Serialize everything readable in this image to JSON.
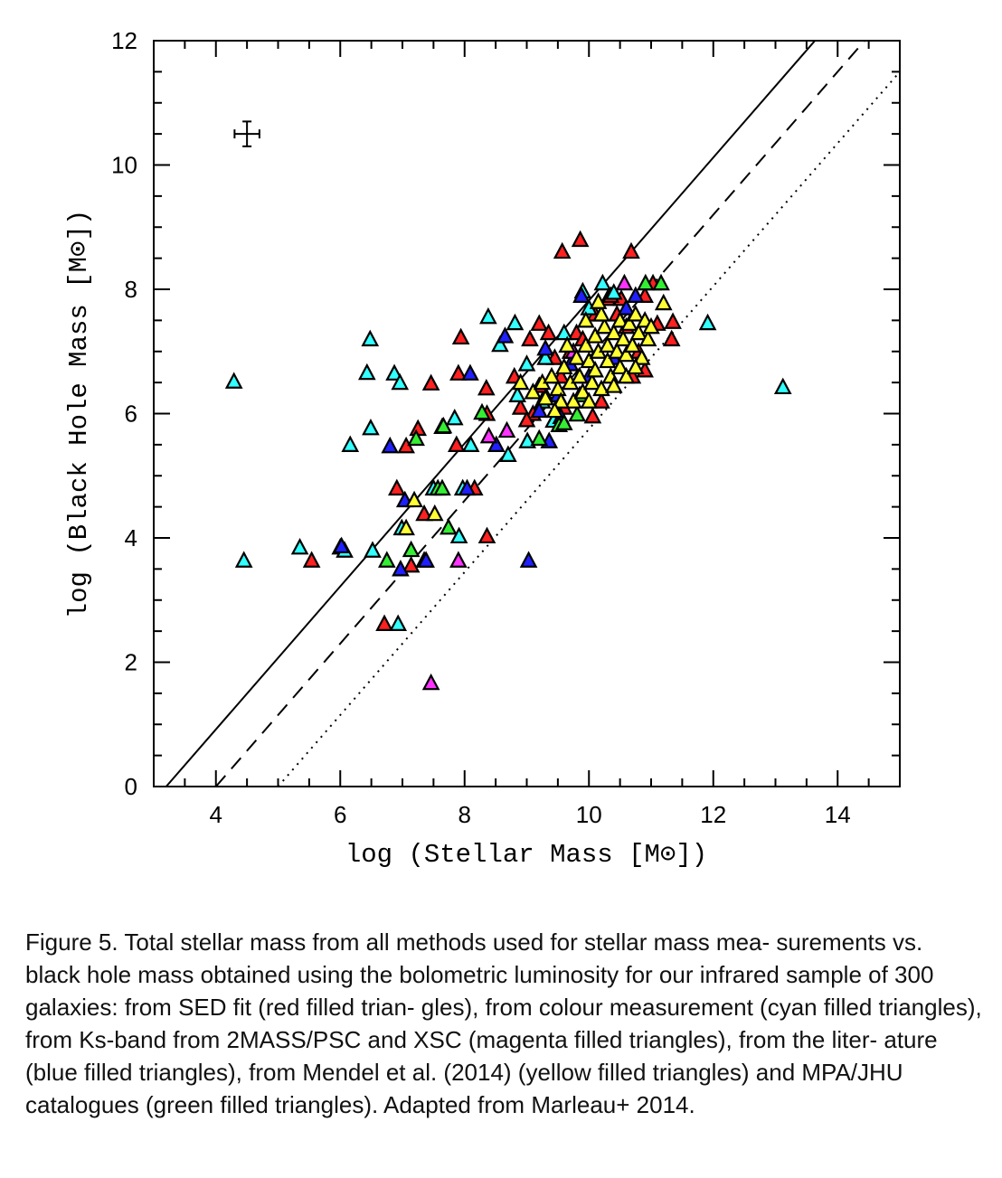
{
  "chart_data": {
    "type": "scatter",
    "xlabel": "log (Stellar Mass [M⊙])",
    "ylabel": "log (Black Hole Mass [M⊙])",
    "xlim": [
      3,
      15
    ],
    "ylim": [
      0,
      12
    ],
    "xticks": [
      4,
      6,
      8,
      10,
      12,
      14
    ],
    "yticks": [
      0,
      2,
      4,
      6,
      8,
      10,
      12
    ],
    "grid": false,
    "marker": "filled-triangle-black-outline",
    "reference_lines": [
      {
        "style": "solid",
        "slope": 1.15,
        "x_at_y0": 3.2
      },
      {
        "style": "dashed",
        "slope": 1.15,
        "x_at_y0": 4.0
      },
      {
        "style": "dotted",
        "slope": 1.15,
        "x_at_y0": 5.0
      }
    ],
    "error_bar": {
      "x": 4.5,
      "y": 10.5,
      "xerr": 0.2,
      "yerr": 0.2
    },
    "series": [
      {
        "color": "#ff2020",
        "points": [
          [
            5.54,
            3.64
          ],
          [
            6.0,
            3.85
          ],
          [
            7.06,
            5.48
          ],
          [
            7.46,
            6.49
          ],
          [
            7.25,
            5.76
          ],
          [
            7.94,
            7.23
          ],
          [
            7.9,
            6.65
          ],
          [
            8.35,
            6.41
          ],
          [
            8.36,
            6.0
          ],
          [
            7.87,
            5.5
          ],
          [
            6.91,
            4.8
          ],
          [
            7.35,
            4.39
          ],
          [
            8.16,
            4.8
          ],
          [
            8.36,
            4.03
          ],
          [
            7.14,
            3.56
          ],
          [
            6.71,
            2.62
          ],
          [
            9.57,
            8.61
          ],
          [
            9.86,
            8.8
          ],
          [
            10.68,
            8.61
          ],
          [
            11.35,
            7.48
          ],
          [
            11.33,
            7.2
          ],
          [
            10.52,
            7.85
          ],
          [
            11.03,
            8.1
          ],
          [
            10.06,
            5.96
          ],
          [
            9.2,
            7.45
          ],
          [
            9.35,
            7.3
          ],
          [
            9.05,
            7.2
          ],
          [
            8.9,
            6.1
          ],
          [
            9.1,
            6.0
          ],
          [
            9.3,
            6.3
          ],
          [
            9.55,
            6.6
          ],
          [
            9.7,
            7.0
          ],
          [
            9.8,
            7.3
          ],
          [
            10.1,
            7.6
          ],
          [
            10.3,
            7.85
          ],
          [
            10.45,
            7.6
          ],
          [
            10.6,
            7.4
          ],
          [
            10.8,
            7.0
          ],
          [
            10.9,
            6.7
          ],
          [
            10.7,
            6.6
          ],
          [
            9.6,
            6.1
          ],
          [
            9.45,
            6.9
          ],
          [
            9.9,
            7.2
          ],
          [
            10.35,
            7.9
          ],
          [
            10.9,
            7.9
          ],
          [
            9.2,
            6.45
          ],
          [
            8.8,
            6.6
          ],
          [
            9.0,
            5.9
          ],
          [
            10.2,
            6.2
          ],
          [
            11.1,
            7.45
          ]
        ]
      },
      {
        "color": "#33ffff",
        "points": [
          [
            4.29,
            6.52
          ],
          [
            4.45,
            3.64
          ],
          [
            5.35,
            3.85
          ],
          [
            6.07,
            3.8
          ],
          [
            6.16,
            5.5
          ],
          [
            6.48,
            7.2
          ],
          [
            6.43,
            6.66
          ],
          [
            6.49,
            5.77
          ],
          [
            6.52,
            3.8
          ],
          [
            6.87,
            6.65
          ],
          [
            6.96,
            6.5
          ],
          [
            7.64,
            5.79
          ],
          [
            7.84,
            5.93
          ],
          [
            8.38,
            7.56
          ],
          [
            8.57,
            7.11
          ],
          [
            8.81,
            7.46
          ],
          [
            8.1,
            5.5
          ],
          [
            8.7,
            5.34
          ],
          [
            6.99,
            4.16
          ],
          [
            7.5,
            4.8
          ],
          [
            7.97,
            4.8
          ],
          [
            7.91,
            4.03
          ],
          [
            7.35,
            3.64
          ],
          [
            6.93,
            2.62
          ],
          [
            11.91,
            7.46
          ],
          [
            13.12,
            6.43
          ],
          [
            10.22,
            8.1
          ],
          [
            9.9,
            7.97
          ],
          [
            9.01,
            5.56
          ],
          [
            9.43,
            5.89
          ],
          [
            9.0,
            6.8
          ],
          [
            9.3,
            6.9
          ],
          [
            9.6,
            7.3
          ],
          [
            10.0,
            7.7
          ],
          [
            10.4,
            7.95
          ],
          [
            9.25,
            6.2
          ],
          [
            8.85,
            6.3
          ]
        ]
      },
      {
        "color": "#2020ff",
        "points": [
          [
            6.02,
            3.87
          ],
          [
            6.8,
            5.48
          ],
          [
            8.09,
            6.65
          ],
          [
            8.65,
            7.25
          ],
          [
            8.51,
            5.5
          ],
          [
            7.04,
            4.61
          ],
          [
            8.04,
            4.8
          ],
          [
            6.97,
            3.5
          ],
          [
            7.38,
            3.64
          ],
          [
            9.03,
            3.64
          ],
          [
            9.88,
            7.9
          ],
          [
            9.36,
            5.56
          ],
          [
            9.5,
            6.3
          ],
          [
            9.7,
            6.8
          ],
          [
            9.3,
            7.05
          ],
          [
            10.0,
            6.6
          ],
          [
            10.6,
            7.7
          ],
          [
            9.55,
            5.95
          ],
          [
            9.2,
            6.05
          ],
          [
            10.4,
            6.9
          ],
          [
            10.75,
            7.9
          ]
        ]
      },
      {
        "color": "#ff33ff",
        "points": [
          [
            8.39,
            5.64
          ],
          [
            7.9,
            3.64
          ],
          [
            7.46,
            1.67
          ],
          [
            10.57,
            8.1
          ],
          [
            8.68,
            5.73
          ],
          [
            9.75,
            7.0
          ]
        ]
      },
      {
        "color": "#33ee33",
        "points": [
          [
            7.22,
            5.6
          ],
          [
            7.66,
            5.8
          ],
          [
            8.28,
            6.02
          ],
          [
            7.57,
            4.8
          ],
          [
            7.64,
            4.8
          ],
          [
            7.74,
            4.17
          ],
          [
            7.14,
            3.81
          ],
          [
            6.75,
            3.64
          ],
          [
            9.81,
            5.99
          ],
          [
            9.2,
            5.6
          ],
          [
            9.52,
            5.82
          ],
          [
            10.91,
            8.1
          ],
          [
            11.16,
            8.1
          ],
          [
            9.6,
            5.85
          ],
          [
            9.85,
            6.3
          ]
        ]
      },
      {
        "color": "#ffff33",
        "points": [
          [
            7.19,
            4.61
          ],
          [
            7.52,
            4.39
          ],
          [
            7.06,
            4.16
          ],
          [
            8.9,
            6.5
          ],
          [
            9.1,
            6.35
          ],
          [
            9.25,
            6.5
          ],
          [
            9.4,
            6.6
          ],
          [
            9.5,
            6.4
          ],
          [
            9.6,
            6.75
          ],
          [
            9.7,
            6.5
          ],
          [
            9.75,
            6.2
          ],
          [
            9.8,
            6.9
          ],
          [
            9.85,
            6.6
          ],
          [
            9.9,
            6.35
          ],
          [
            9.95,
            7.1
          ],
          [
            10.0,
            6.85
          ],
          [
            10.05,
            6.5
          ],
          [
            10.1,
            7.25
          ],
          [
            10.1,
            6.7
          ],
          [
            10.15,
            7.0
          ],
          [
            10.2,
            6.4
          ],
          [
            10.25,
            7.4
          ],
          [
            10.3,
            6.85
          ],
          [
            10.3,
            7.1
          ],
          [
            10.35,
            6.6
          ],
          [
            10.4,
            7.3
          ],
          [
            10.45,
            7.0
          ],
          [
            10.5,
            7.5
          ],
          [
            10.5,
            6.75
          ],
          [
            10.55,
            7.2
          ],
          [
            10.6,
            6.95
          ],
          [
            10.65,
            7.45
          ],
          [
            10.7,
            7.1
          ],
          [
            10.75,
            7.6
          ],
          [
            10.8,
            7.3
          ],
          [
            10.85,
            6.9
          ],
          [
            10.9,
            7.5
          ],
          [
            10.95,
            7.2
          ],
          [
            11.0,
            7.4
          ],
          [
            10.2,
            7.6
          ],
          [
            9.95,
            7.5
          ],
          [
            9.65,
            7.1
          ],
          [
            10.4,
            6.45
          ],
          [
            9.55,
            6.2
          ],
          [
            10.0,
            6.2
          ],
          [
            9.45,
            6.05
          ],
          [
            10.6,
            6.6
          ],
          [
            11.2,
            7.78
          ],
          [
            10.15,
            7.8
          ],
          [
            10.75,
            6.75
          ],
          [
            9.3,
            6.25
          ]
        ]
      }
    ]
  },
  "caption": "Figure 5. Total stellar mass from all methods used for stellar mass mea- surements vs. black hole mass obtained using the bolometric luminosity for our infrared sample of 300 galaxies: from SED fit (red filled trian- gles), from colour measurement (cyan filled triangles), from Ks-band from 2MASS/PSC and XSC (magenta filled triangles), from the liter- ature (blue filled triangles), from Mendel et al. (2014) (yellow filled triangles) and MPA/JHU catalogues (green filled triangles). Adapted from Marleau+ 2014."
}
